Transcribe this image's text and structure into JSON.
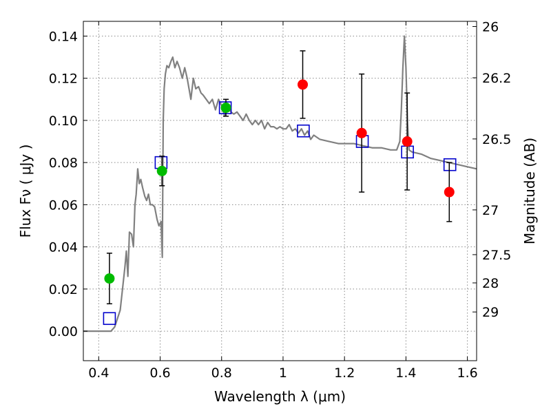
{
  "chart_data": {
    "type": "scatter",
    "title": "",
    "xlabel": "Wavelength  λ (μm)",
    "ylabel": "Flux  Fν  ( μJy )",
    "y2label": "Magnitude (AB)",
    "xlim": [
      0.35,
      1.63
    ],
    "ylim": [
      -0.014,
      0.147
    ],
    "grid": true,
    "x_ticks": [
      0.4,
      0.6,
      0.8,
      1.0,
      1.2,
      1.4,
      1.6
    ],
    "x_tick_labels": [
      "0.4",
      "0.6",
      "0.8",
      "1",
      "1.2",
      "1.4",
      "1.6"
    ],
    "y_ticks": [
      0.0,
      0.02,
      0.04,
      0.06,
      0.08,
      0.1,
      0.12,
      0.14
    ],
    "y_tick_labels": [
      "0.00",
      "0.02",
      "0.04",
      "0.06",
      "0.08",
      "0.10",
      "0.12",
      "0.14"
    ],
    "mag_ticks": [
      26,
      26.2,
      26.5,
      27,
      27.5,
      28,
      29
    ],
    "mag_tick_labels": [
      "26",
      "26.2",
      "26.5",
      "27",
      "27.5",
      "28",
      "29"
    ],
    "colors": {
      "model": "#808080",
      "optical": "#00bb00",
      "nir": "#ff0000",
      "model_flux": "#0000cc",
      "errorbar": "#000000"
    },
    "series": [
      {
        "kind": "line",
        "x": [
          0.35,
          0.44,
          0.452,
          0.47,
          0.485,
          0.49,
          0.495,
          0.5,
          0.507,
          0.513,
          0.518,
          0.522,
          0.527,
          0.532,
          0.537,
          0.543,
          0.55,
          0.556,
          0.562,
          0.568,
          0.575,
          0.582,
          0.59,
          0.596,
          0.603,
          0.607,
          0.61,
          0.613,
          0.617,
          0.622,
          0.628,
          0.635,
          0.641,
          0.648,
          0.655,
          0.663,
          0.672,
          0.68,
          0.688,
          0.694,
          0.7,
          0.708,
          0.716,
          0.725,
          0.733,
          0.74,
          0.75,
          0.76,
          0.77,
          0.78,
          0.79,
          0.8,
          0.81,
          0.82,
          0.83,
          0.84,
          0.85,
          0.86,
          0.87,
          0.88,
          0.89,
          0.9,
          0.91,
          0.92,
          0.93,
          0.94,
          0.95,
          0.96,
          0.97,
          0.98,
          0.99,
          1.0,
          1.01,
          1.02,
          1.03,
          1.04,
          1.05,
          1.06,
          1.07,
          1.08,
          1.09,
          1.1,
          1.12,
          1.15,
          1.18,
          1.2,
          1.23,
          1.26,
          1.29,
          1.32,
          1.35,
          1.37,
          1.38,
          1.385,
          1.39,
          1.395,
          1.4,
          1.405,
          1.41,
          1.42,
          1.45,
          1.48,
          1.51,
          1.54,
          1.57,
          1.6,
          1.63
        ],
        "y": [
          0.0,
          0.0,
          0.002,
          0.01,
          0.03,
          0.038,
          0.026,
          0.047,
          0.046,
          0.04,
          0.06,
          0.065,
          0.077,
          0.07,
          0.072,
          0.068,
          0.064,
          0.062,
          0.065,
          0.06,
          0.06,
          0.059,
          0.053,
          0.05,
          0.052,
          0.035,
          0.1,
          0.115,
          0.122,
          0.126,
          0.125,
          0.128,
          0.13,
          0.125,
          0.128,
          0.125,
          0.12,
          0.125,
          0.12,
          0.115,
          0.11,
          0.12,
          0.115,
          0.116,
          0.113,
          0.112,
          0.11,
          0.108,
          0.11,
          0.105,
          0.11,
          0.107,
          0.102,
          0.108,
          0.104,
          0.103,
          0.104,
          0.102,
          0.1,
          0.103,
          0.1,
          0.098,
          0.1,
          0.098,
          0.1,
          0.096,
          0.099,
          0.097,
          0.097,
          0.096,
          0.097,
          0.096,
          0.096,
          0.098,
          0.095,
          0.096,
          0.094,
          0.096,
          0.093,
          0.095,
          0.091,
          0.093,
          0.091,
          0.09,
          0.089,
          0.089,
          0.089,
          0.088,
          0.087,
          0.087,
          0.086,
          0.086,
          0.09,
          0.105,
          0.125,
          0.14,
          0.125,
          0.1,
          0.086,
          0.085,
          0.084,
          0.082,
          0.081,
          0.08,
          0.079,
          0.078,
          0.077
        ]
      },
      {
        "kind": "points",
        "marker": "square",
        "x": [
          0.435,
          0.603,
          0.812,
          1.066,
          1.258,
          1.405,
          1.543
        ],
        "y": [
          0.006,
          0.08,
          0.106,
          0.095,
          0.09,
          0.085,
          0.079
        ]
      },
      {
        "kind": "points",
        "marker": "circle",
        "color_key": "optical",
        "x": [
          0.435,
          0.606,
          0.814
        ],
        "y": [
          0.025,
          0.076,
          0.106
        ],
        "err": [
          0.012,
          0.007,
          0.004
        ]
      },
      {
        "kind": "points",
        "marker": "circle",
        "color_key": "nir",
        "x": [
          1.064,
          1.256,
          1.404,
          1.541
        ],
        "y": [
          0.117,
          0.094,
          0.09,
          0.066
        ],
        "err": [
          0.016,
          0.028,
          0.023,
          0.014
        ]
      }
    ]
  }
}
